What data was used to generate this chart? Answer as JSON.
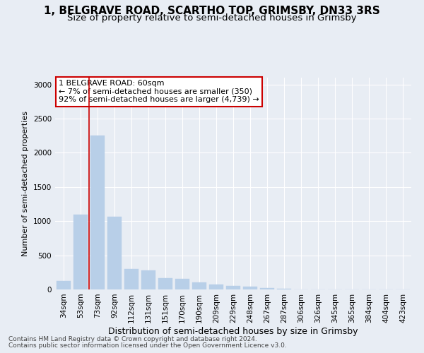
{
  "title": "1, BELGRAVE ROAD, SCARTHO TOP, GRIMSBY, DN33 3RS",
  "subtitle": "Size of property relative to semi-detached houses in Grimsby",
  "xlabel": "Distribution of semi-detached houses by size in Grimsby",
  "ylabel": "Number of semi-detached properties",
  "footer1": "Contains HM Land Registry data © Crown copyright and database right 2024.",
  "footer2": "Contains public sector information licensed under the Open Government Licence v3.0.",
  "annotation_title": "1 BELGRAVE ROAD: 60sqm",
  "annotation_line2": "← 7% of semi-detached houses are smaller (350)",
  "annotation_line3": "92% of semi-detached houses are larger (4,739) →",
  "bar_labels": [
    "34sqm",
    "53sqm",
    "73sqm",
    "92sqm",
    "112sqm",
    "131sqm",
    "151sqm",
    "170sqm",
    "190sqm",
    "209sqm",
    "229sqm",
    "248sqm",
    "267sqm",
    "287sqm",
    "306sqm",
    "326sqm",
    "345sqm",
    "365sqm",
    "384sqm",
    "404sqm",
    "423sqm"
  ],
  "bar_values": [
    125,
    1100,
    2250,
    1060,
    300,
    280,
    165,
    160,
    100,
    75,
    50,
    38,
    20,
    10,
    5,
    3,
    2,
    1,
    1,
    0,
    0
  ],
  "bar_color": "#b8cfe8",
  "vline_color": "#cc0000",
  "vline_x": 1.5,
  "ylim": [
    0,
    3100
  ],
  "yticks": [
    0,
    500,
    1000,
    1500,
    2000,
    2500,
    3000
  ],
  "bg_color": "#e8edf4",
  "plot_bg_color": "#e8edf4",
  "annotation_box_facecolor": "#ffffff",
  "annotation_border_color": "#cc0000",
  "title_fontsize": 11,
  "subtitle_fontsize": 9.5,
  "xlabel_fontsize": 9,
  "ylabel_fontsize": 8,
  "tick_fontsize": 7.5,
  "annotation_fontsize": 8,
  "footer_fontsize": 6.5
}
